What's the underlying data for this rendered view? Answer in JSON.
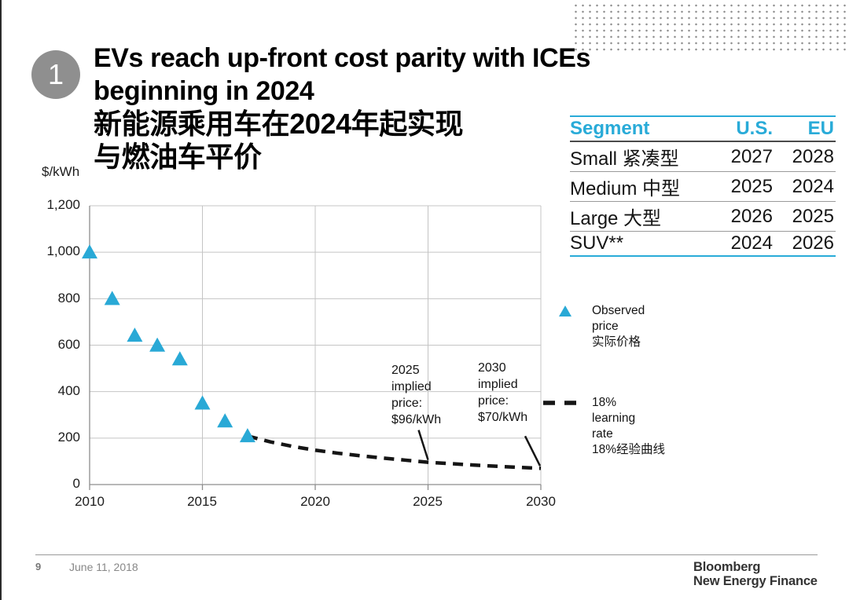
{
  "slide": {
    "badge": "1",
    "title_lines": [
      "EVs reach up-front cost parity with ICEs",
      "beginning in 2024",
      "新能源乘用车在2024年起实现",
      "与燃油车平价"
    ]
  },
  "parity_table": {
    "accent_color": "#29ABD8",
    "headers": [
      "Segment",
      "U.S.",
      "EU"
    ],
    "rows": [
      [
        "Small 紧凑型",
        "2027",
        "2028"
      ],
      [
        "Medium 中型",
        "2025",
        "2024"
      ],
      [
        "Large 大型",
        "2026",
        "2025"
      ],
      [
        "SUV**",
        "2024",
        "2026"
      ]
    ]
  },
  "chart_data": {
    "type": "scatter",
    "title": "",
    "ylabel": "$/kWh",
    "xlabel": "",
    "ylim": [
      0,
      1200
    ],
    "xlim": [
      2010,
      2030
    ],
    "grid": true,
    "y_ticks": [
      "1,200",
      "1,000",
      "800",
      "600",
      "400",
      "200",
      "0"
    ],
    "x_ticks": [
      "2010",
      "2015",
      "2020",
      "2025",
      "2030"
    ],
    "series": [
      {
        "name": "Observed price 实际价格",
        "type": "scatter",
        "marker": "triangle",
        "color": "#29A9D6",
        "x": [
          2010,
          2011,
          2012,
          2013,
          2014,
          2015,
          2016,
          2017
        ],
        "values": [
          1000,
          800,
          642,
          599,
          540,
          350,
          273,
          209
        ]
      },
      {
        "name": "18% learning rate 18%经验曲线",
        "type": "dashed-line",
        "color": "#151515",
        "x": [
          2017,
          2018,
          2019,
          2020,
          2021,
          2022,
          2023,
          2024,
          2025,
          2026,
          2027,
          2028,
          2029,
          2030
        ],
        "values": [
          209,
          184,
          164,
          148,
          135,
          124,
          114,
          105,
          96,
          90,
          84,
          79,
          74,
          70
        ]
      }
    ],
    "annotations": [
      {
        "lines": [
          "2025",
          "implied",
          "price:",
          "$96/kWh"
        ],
        "year": 2025,
        "value": 96
      },
      {
        "lines": [
          "2030",
          "implied",
          "price:",
          "$70/kWh"
        ],
        "year": 2030,
        "value": 70
      }
    ],
    "legend": [
      {
        "lines": [
          "Observed",
          "price",
          "实际价格"
        ]
      },
      {
        "lines": [
          "18%",
          "learning",
          "rate",
          "18%经验曲线"
        ]
      }
    ],
    "legend_position": "right"
  },
  "footer": {
    "page_number": "9",
    "date": "June 11, 2018",
    "logo_lines": [
      "Bloomberg",
      "New Energy Finance"
    ]
  }
}
